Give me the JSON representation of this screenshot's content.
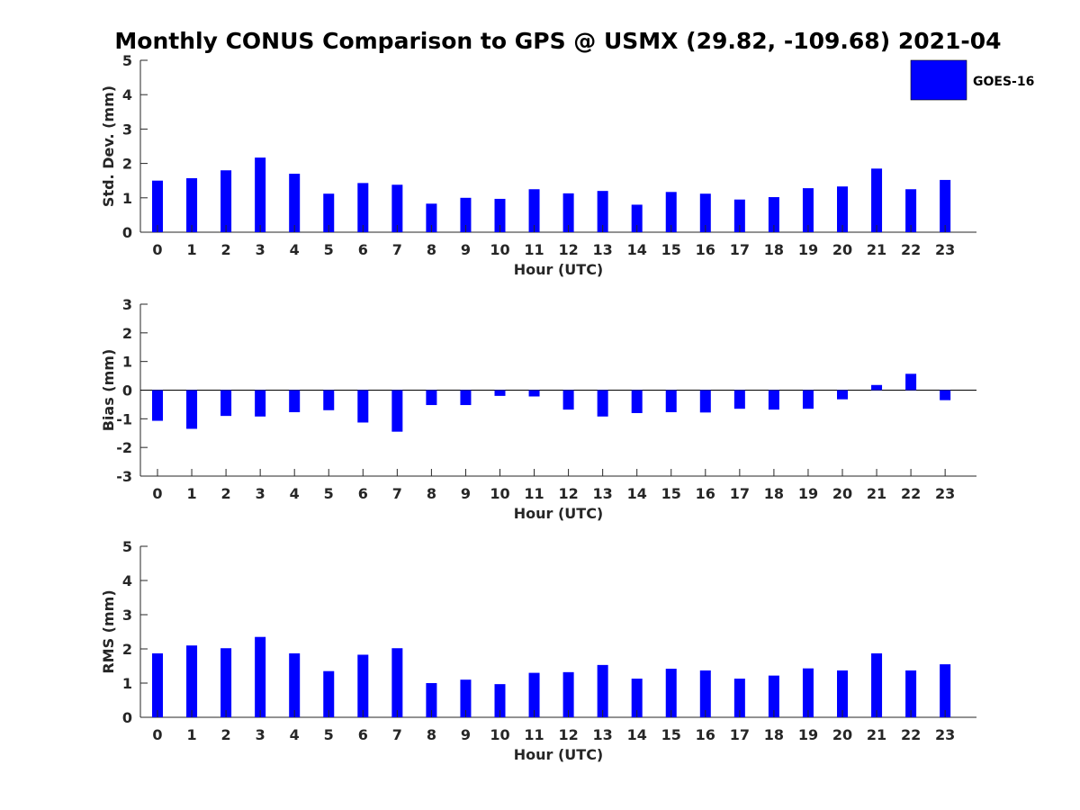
{
  "chart_data": {
    "title": "Monthly CONUS Comparison to GPS @ USMX (29.82, -109.68) 2021-04",
    "type": "bar",
    "legend": {
      "label": "GOES-16",
      "color": "#0000ff",
      "placement": "top-right"
    },
    "categories": [
      "0",
      "1",
      "2",
      "3",
      "4",
      "5",
      "6",
      "7",
      "8",
      "9",
      "10",
      "11",
      "12",
      "13",
      "14",
      "15",
      "16",
      "17",
      "18",
      "19",
      "20",
      "21",
      "22",
      "23"
    ],
    "panels": [
      {
        "id": "stddev",
        "ylabel": "Std. Dev. (mm)",
        "xlabel": "Hour (UTC)",
        "ylim": [
          0,
          5
        ],
        "yticks": [
          0,
          1,
          2,
          3,
          4,
          5
        ],
        "zero_line": false,
        "series": [
          {
            "name": "GOES-16",
            "values": [
              1.5,
              1.57,
              1.8,
              2.17,
              1.7,
              1.12,
              1.43,
              1.38,
              0.83,
              1.0,
              0.97,
              1.25,
              1.13,
              1.2,
              0.8,
              1.17,
              1.12,
              0.95,
              1.02,
              1.28,
              1.33,
              1.85,
              1.25,
              1.52
            ]
          }
        ]
      },
      {
        "id": "bias",
        "ylabel": "Bias (mm)",
        "xlabel": "Hour (UTC)",
        "ylim": [
          -3,
          3
        ],
        "yticks": [
          -3,
          -2,
          -1,
          0,
          1,
          2,
          3
        ],
        "zero_line": true,
        "series": [
          {
            "name": "GOES-16",
            "values": [
              -1.07,
              -1.35,
              -0.9,
              -0.92,
              -0.77,
              -0.7,
              -1.13,
              -1.45,
              -0.52,
              -0.52,
              -0.2,
              -0.22,
              -0.68,
              -0.92,
              -0.8,
              -0.77,
              -0.78,
              -0.65,
              -0.68,
              -0.65,
              -0.32,
              0.18,
              0.57,
              -0.35
            ]
          }
        ]
      },
      {
        "id": "rms",
        "ylabel": "RMS (mm)",
        "xlabel": "Hour (UTC)",
        "ylim": [
          0,
          5
        ],
        "yticks": [
          0,
          1,
          2,
          3,
          4,
          5
        ],
        "zero_line": false,
        "series": [
          {
            "name": "GOES-16",
            "values": [
              1.87,
              2.1,
              2.02,
              2.35,
              1.87,
              1.35,
              1.83,
              2.02,
              1.0,
              1.1,
              0.97,
              1.3,
              1.32,
              1.53,
              1.13,
              1.42,
              1.37,
              1.13,
              1.22,
              1.43,
              1.37,
              1.87,
              1.37,
              1.55
            ]
          }
        ]
      }
    ]
  }
}
